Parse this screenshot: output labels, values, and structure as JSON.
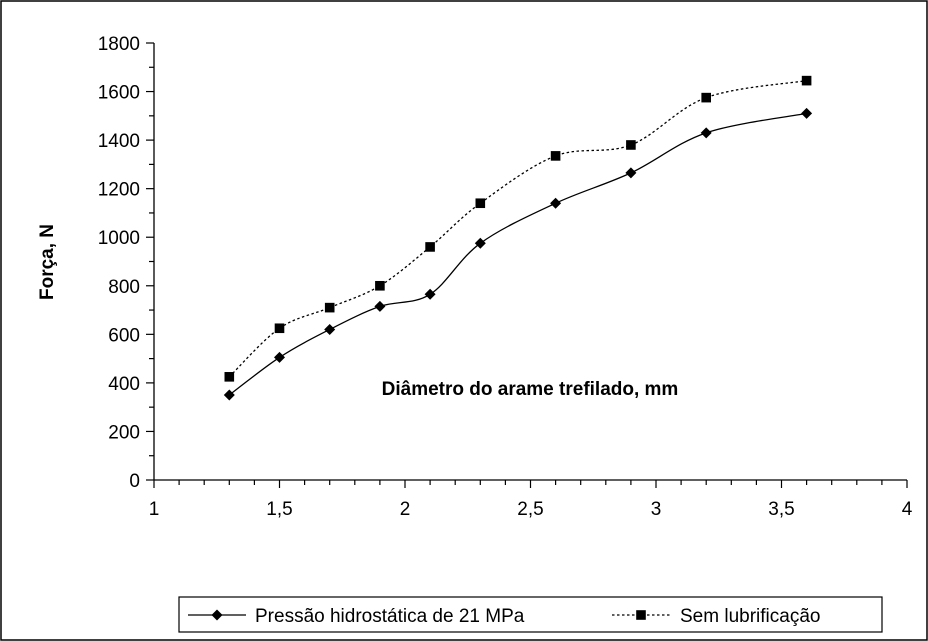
{
  "chart_data": {
    "type": "line",
    "xlabel": "Diâmetro do arame trefilado, mm",
    "ylabel": "Força, N",
    "xlim": [
      1,
      4
    ],
    "ylim": [
      0,
      1800
    ],
    "x_ticks": [
      1,
      1.5,
      2,
      2.5,
      3,
      3.5,
      4
    ],
    "x_tick_labels": [
      "1",
      "1,5",
      "2",
      "2,5",
      "3",
      "3,5",
      "4"
    ],
    "y_ticks": [
      0,
      200,
      400,
      600,
      800,
      1000,
      1200,
      1400,
      1600,
      1800
    ],
    "y_tick_labels": [
      "0",
      "200",
      "400",
      "600",
      "800",
      "1000",
      "1200",
      "1400",
      "1600",
      "1800"
    ],
    "grid": false,
    "legend_position": "bottom",
    "series": [
      {
        "name": "Pressão hidrostática de 21 MPa",
        "marker": "diamond",
        "line_style": "solid",
        "color": "#000000",
        "x": [
          1.3,
          1.5,
          1.7,
          1.9,
          2.1,
          2.3,
          2.6,
          2.9,
          3.2,
          3.6
        ],
        "values": [
          350,
          505,
          620,
          715,
          765,
          975,
          1140,
          1265,
          1430,
          1510
        ]
      },
      {
        "name": "Sem lubrificação",
        "marker": "square",
        "line_style": "dotted",
        "color": "#000000",
        "x": [
          1.3,
          1.5,
          1.7,
          1.9,
          2.1,
          2.3,
          2.6,
          2.9,
          3.2,
          3.6
        ],
        "values": [
          425,
          625,
          710,
          800,
          960,
          1140,
          1335,
          1380,
          1575,
          1645
        ]
      }
    ]
  }
}
